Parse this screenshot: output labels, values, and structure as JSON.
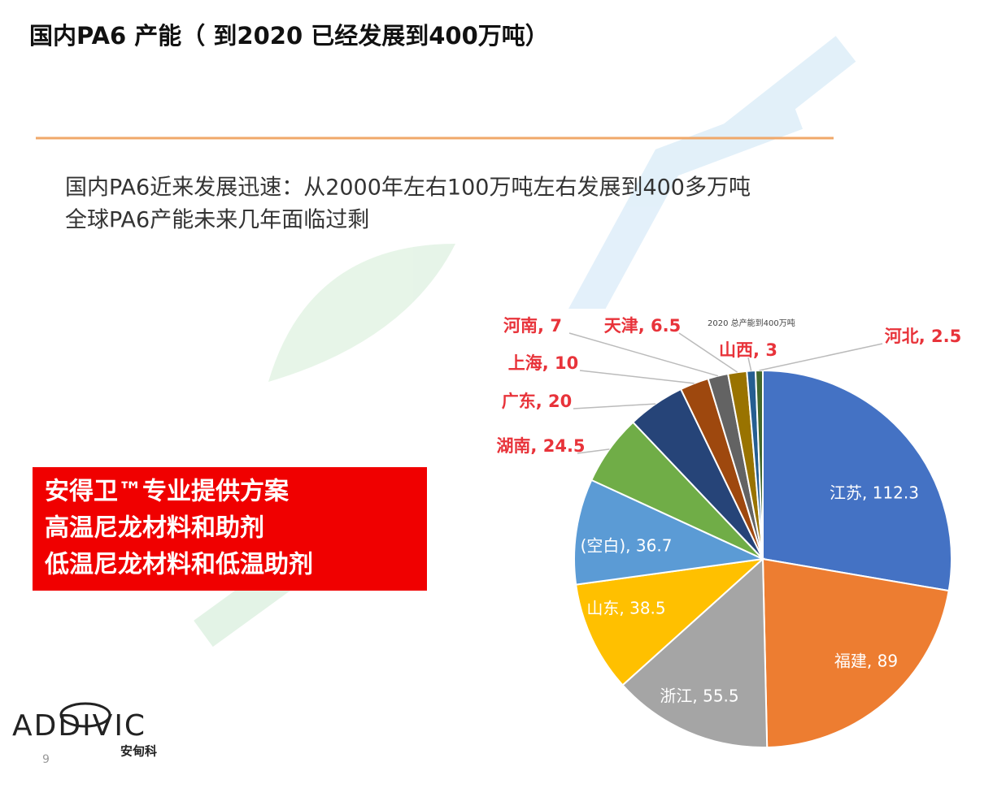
{
  "header": {
    "title": "国内PA6 产能（ 到2020 已经发展到400万吨）"
  },
  "bullets": [
    "国内PA6近来发展迅速：从2000年左右100万吨左右发展到400多万吨",
    "全球PA6产能未来几年面临过剩"
  ],
  "callout": [
    "安得卫™专业提供方案",
    "高温尼龙材料和助剂",
    "低温尼龙材料和低温助剂"
  ],
  "logo": {
    "name": "ADDIVIC",
    "subtitle": "安甸科"
  },
  "page_number": 9,
  "chart_data": {
    "type": "pie",
    "title": "2020 总产能到400万吨",
    "values": [
      112.3,
      89,
      55.5,
      38.5,
      36.7,
      24.5,
      20,
      10,
      7,
      6.5,
      3,
      2.5
    ],
    "value_labels": [
      "江苏, 112.3",
      "福建, 89",
      "浙江, 55.5",
      "山东, 38.5",
      "(空白), 36.7",
      "湖南, 24.5",
      "广东, 20",
      "上海, 10",
      "河南, 7",
      "天津, 6.5",
      "山西, 3",
      "河北, 2.5"
    ],
    "colors": [
      "#4472c4",
      "#ed7d31",
      "#a5a5a5",
      "#ffc000",
      "#5b9bd5",
      "#70ad47",
      "#264478",
      "#9e480e",
      "#636363",
      "#997300",
      "#255e91",
      "#43682b"
    ]
  }
}
